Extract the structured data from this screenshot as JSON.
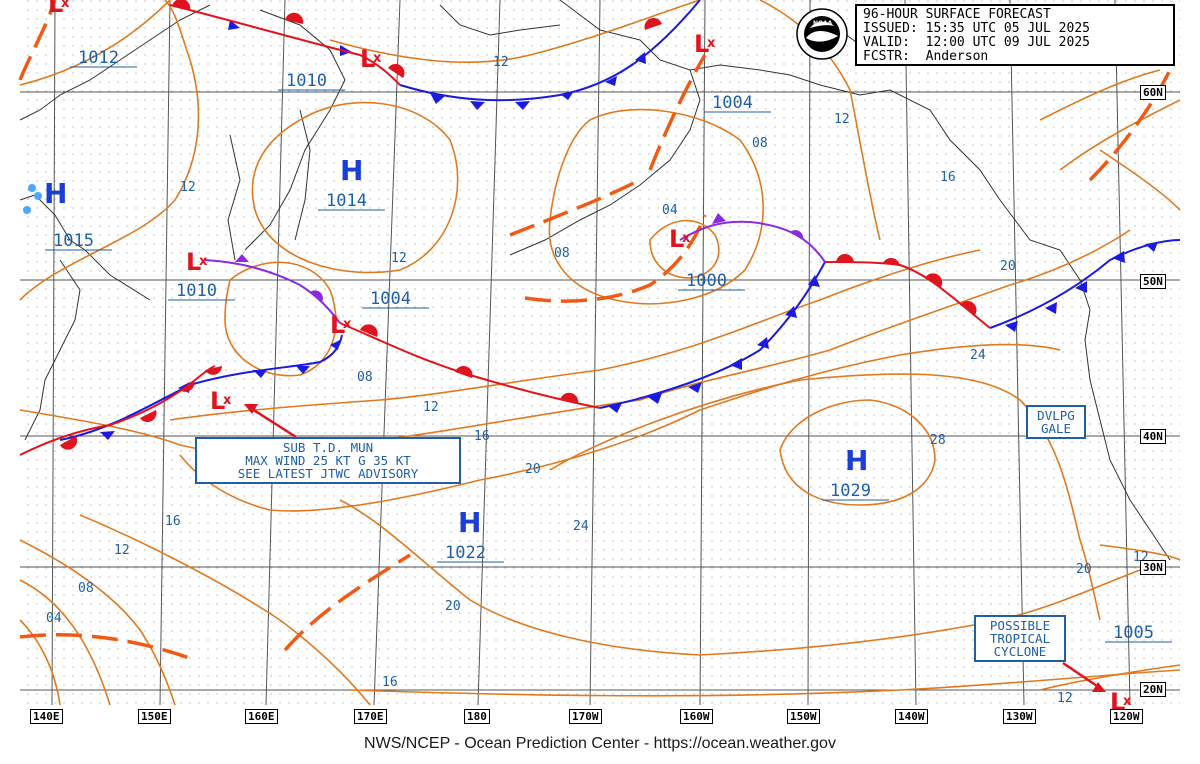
{
  "header": {
    "title": "96-HOUR SURFACE FORECAST",
    "issued": "ISSUED: 15:35 UTC 05 JUL 2025",
    "valid": "VALID:  12:00 UTC 09 JUL 2025",
    "forecaster": "FCSTR:  Anderson",
    "logo_text": "NOAA"
  },
  "footer": "NWS/NCEP - Ocean Prediction Center - https://ocean.weather.gov",
  "lon_labels": [
    "140E",
    "150E",
    "160E",
    "170E",
    "180",
    "170W",
    "160W",
    "150W",
    "140W",
    "130W",
    "120W"
  ],
  "lat_labels": [
    "60N",
    "50N",
    "40N",
    "30N",
    "20N"
  ],
  "highs": [
    {
      "pressure": "1015"
    },
    {
      "pressure": "1014"
    },
    {
      "pressure": "1022"
    },
    {
      "pressure": "1029"
    }
  ],
  "lows": [
    {
      "pressure": "1010"
    },
    {
      "pressure": "1004"
    },
    {
      "pressure": "1000"
    },
    {
      "pressure": "1004"
    },
    {
      "pressure": "1005"
    }
  ],
  "pressure_labels": [
    "1012",
    "1010"
  ],
  "isobar_labels": [
    "12",
    "12",
    "12",
    "12",
    "08",
    "04",
    "08",
    "12",
    "08",
    "16",
    "20",
    "24",
    "12",
    "16",
    "20",
    "24",
    "28",
    "20",
    "16",
    "12",
    "08",
    "04",
    "16",
    "12",
    "20"
  ],
  "notes": {
    "mun": [
      "SUB T.D. MUN",
      "MAX WIND 25 KT G 35 KT",
      "SEE LATEST JTWC ADVISORY"
    ],
    "gale": [
      "DVLPG",
      "GALE"
    ],
    "tropical": [
      "POSSIBLE",
      "TROPICAL",
      "CYCLONE"
    ]
  },
  "colors": {
    "isobar": "#e07a1f",
    "high": "#1a3fd6",
    "low": "#e0141e",
    "warm_front": "#e0141e",
    "cold_front": "#1a1ae0",
    "occluded": "#8a2be2",
    "trough": "#f05a14",
    "coast": "#333333",
    "grid": "#555555",
    "label": "#1f5fa6"
  }
}
